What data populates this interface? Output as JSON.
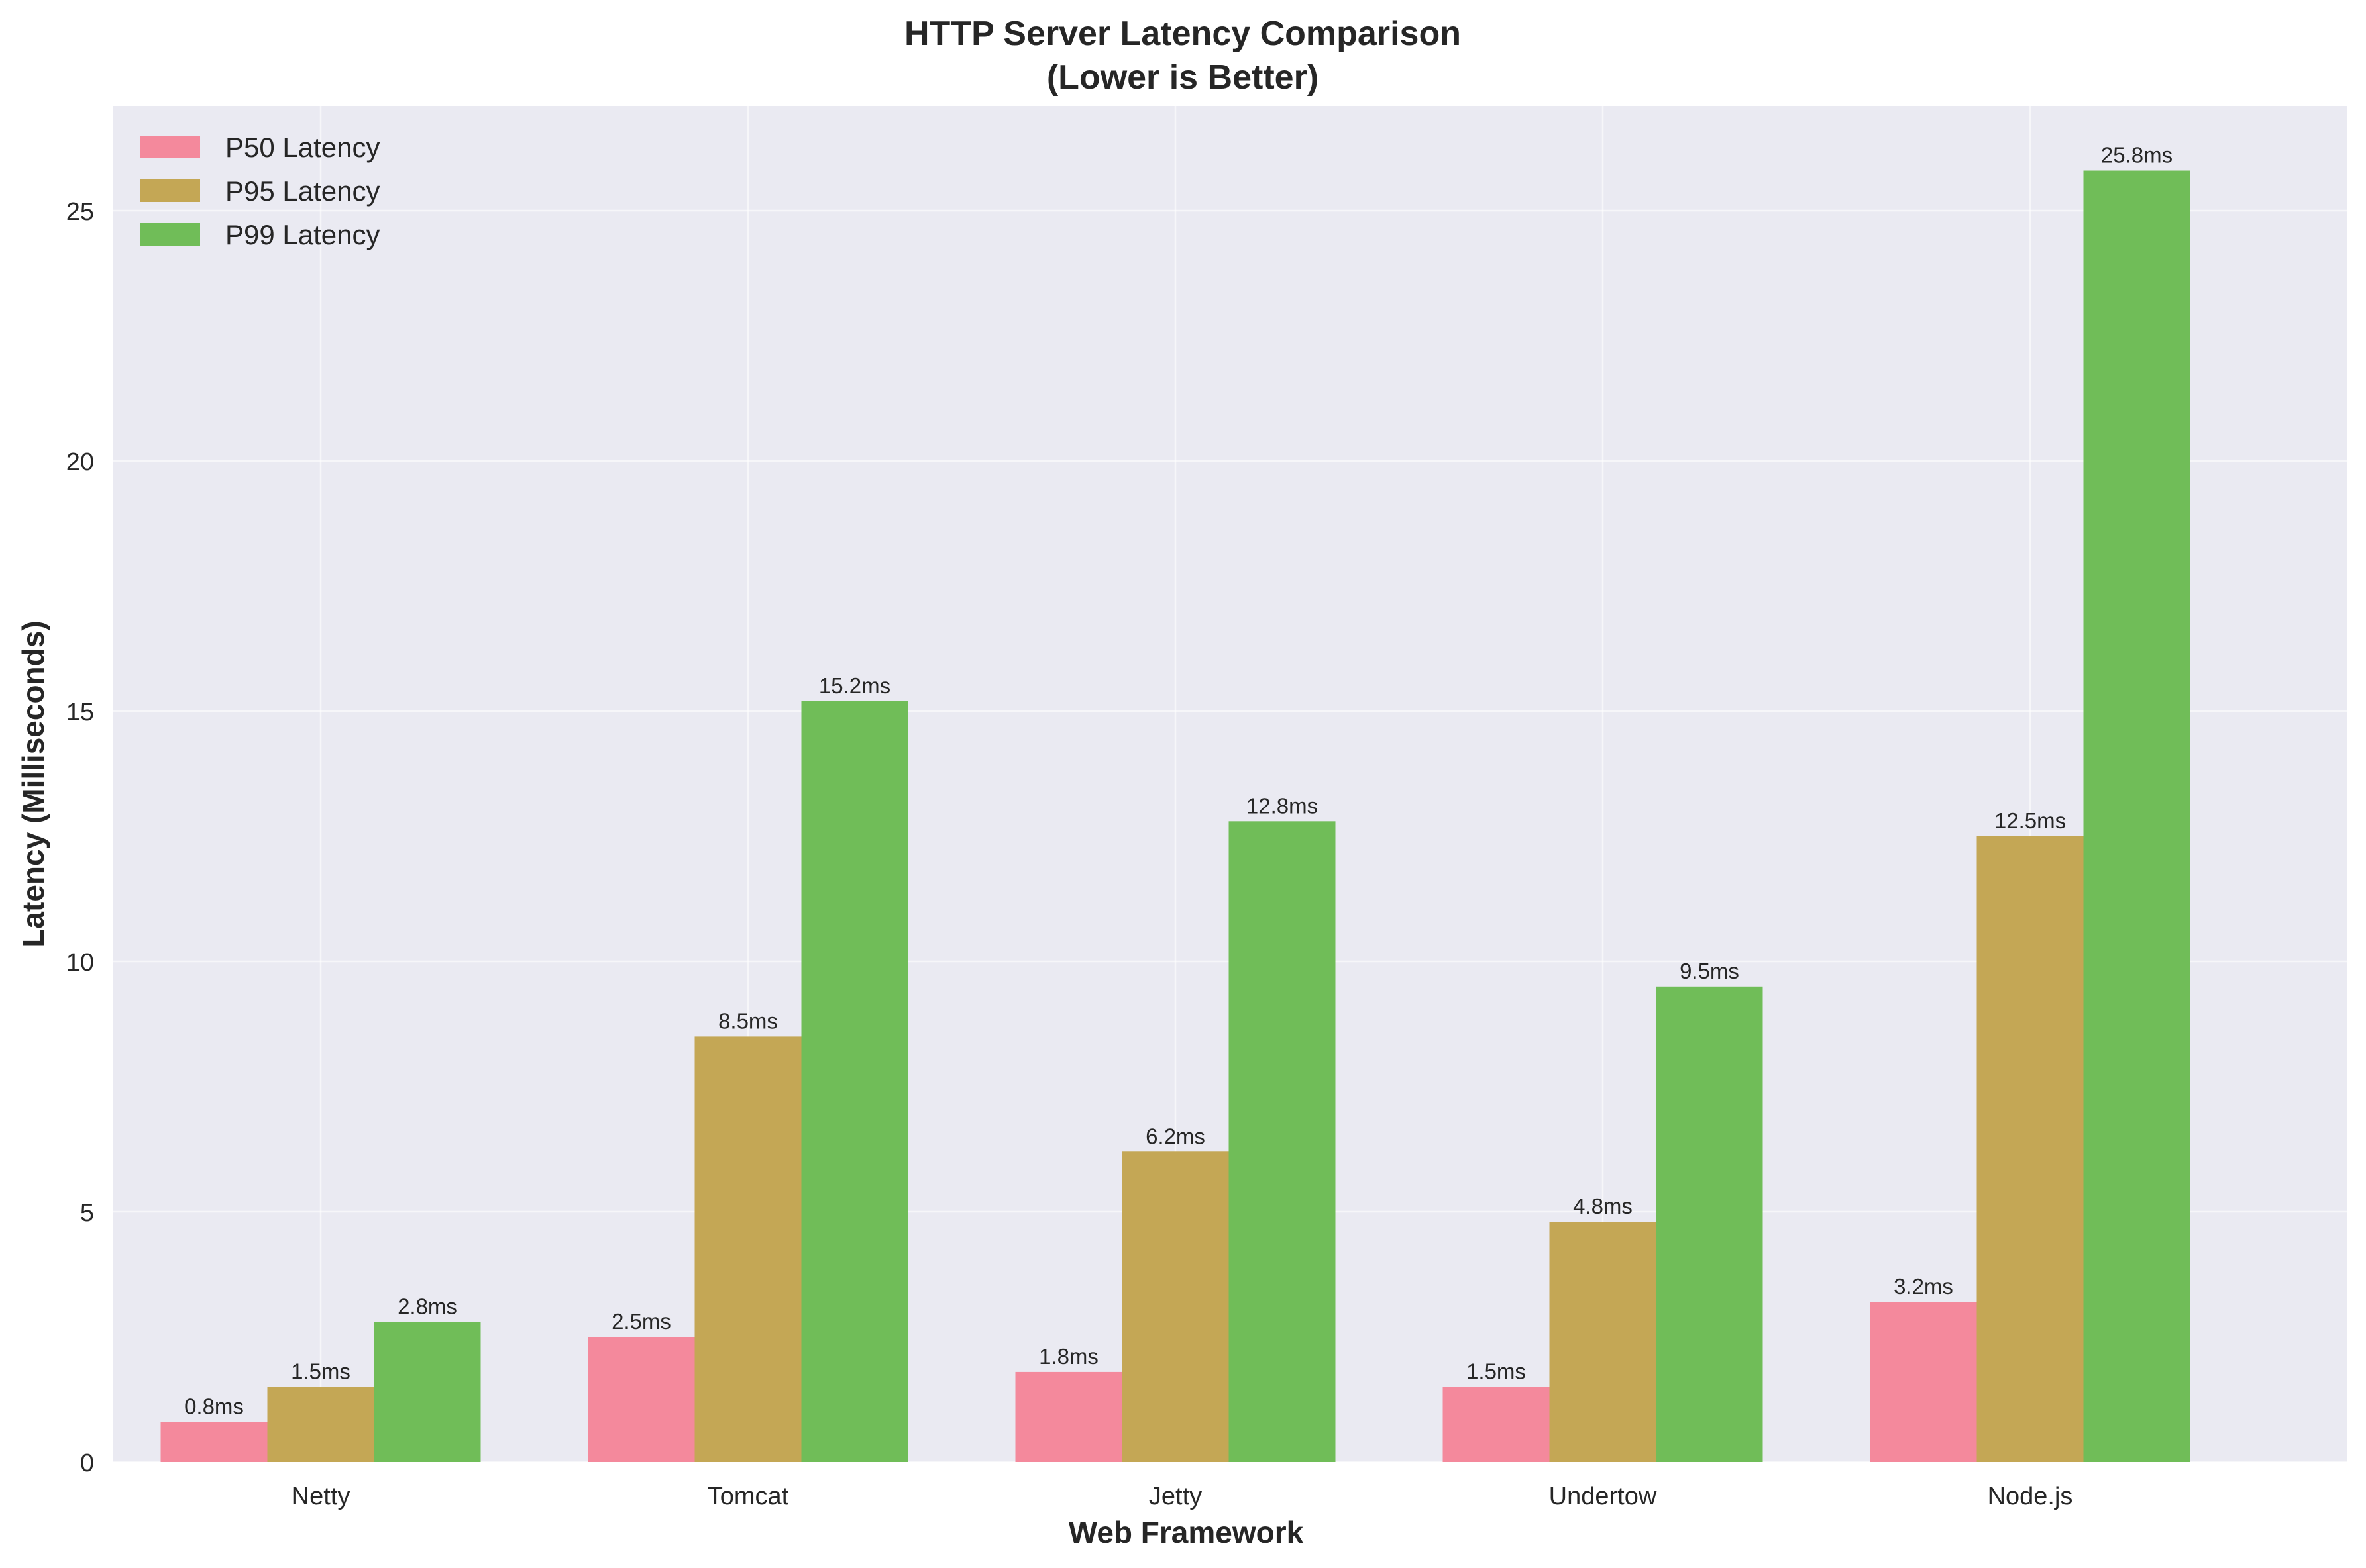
{
  "chart_data": {
    "type": "bar",
    "title": "HTTP Server Latency Comparison",
    "subtitle": "(Lower is Better)",
    "xlabel": "Web Framework",
    "ylabel": "Latency (Milliseconds)",
    "categories": [
      "Netty",
      "Tomcat",
      "Jetty",
      "Undertow",
      "Node.js"
    ],
    "series": [
      {
        "name": "P50 Latency",
        "color": "#f4899c",
        "values": [
          0.8,
          2.5,
          1.8,
          1.5,
          3.2
        ],
        "labels": [
          "0.8ms",
          "2.5ms",
          "1.8ms",
          "1.5ms",
          "3.2ms"
        ]
      },
      {
        "name": "P95 Latency",
        "color": "#c4a755",
        "values": [
          1.5,
          8.5,
          6.2,
          4.8,
          12.5
        ],
        "labels": [
          "1.5ms",
          "8.5ms",
          "6.2ms",
          "4.8ms",
          "12.5ms"
        ]
      },
      {
        "name": "P99 Latency",
        "color": "#70bd58",
        "values": [
          2.8,
          15.2,
          12.8,
          9.5,
          25.8
        ],
        "labels": [
          "2.8ms",
          "15.2ms",
          "12.8ms",
          "9.5ms",
          "25.8ms"
        ]
      }
    ],
    "yticks": [
      0,
      5,
      10,
      15,
      20,
      25
    ],
    "ytick_labels": [
      "0",
      "5",
      "10",
      "15",
      "20",
      "25"
    ],
    "ylim": [
      0,
      27.09
    ],
    "grid": true,
    "legend_position": "top-left",
    "plot_background": "#eaeaf2"
  }
}
